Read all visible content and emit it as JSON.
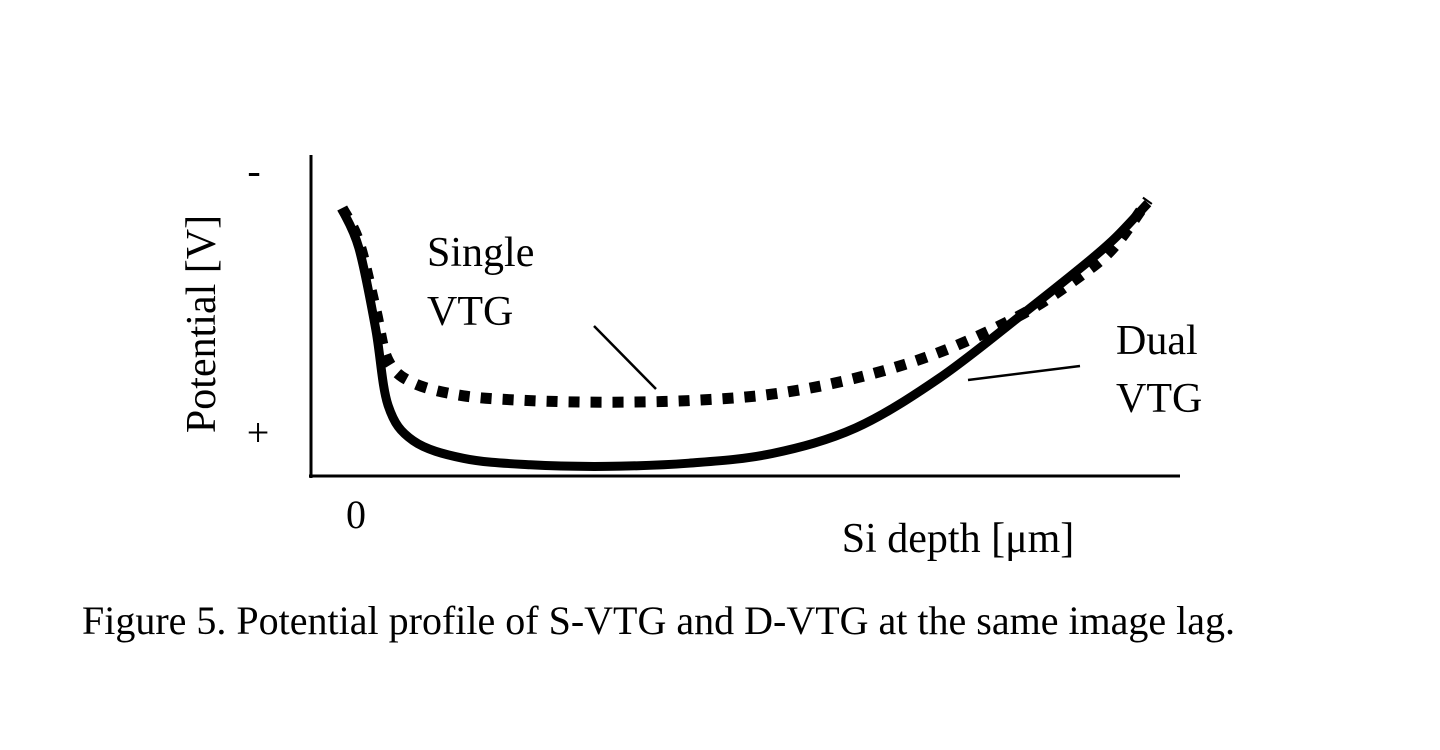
{
  "chart_data": {
    "type": "line",
    "xlabel": "Si depth [μm]",
    "ylabel": "Potential [V]",
    "x_tick_labels": [
      "0"
    ],
    "y_tick_labels": {
      "top": "-",
      "bottom": "+"
    },
    "xlim": [
      0,
      10
    ],
    "ylim": [
      0,
      10
    ],
    "grid": false,
    "legend": "none",
    "annotations": [
      {
        "lines": [
          "Single",
          "VTG"
        ],
        "series": "Single VTG"
      },
      {
        "lines": [
          "Dual",
          "VTG"
        ],
        "series": "Dual VTG"
      }
    ],
    "series": [
      {
        "name": "Single VTG",
        "style": "dashed",
        "color": "#000000",
        "x": [
          0.35,
          0.55,
          0.75,
          0.9,
          1.2,
          1.8,
          2.6,
          3.5,
          4.5,
          5.5,
          6.5,
          7.5,
          8.5,
          9.2,
          9.6,
          10.0
        ],
        "y": [
          8.35,
          7.3,
          5.2,
          3.6,
          2.9,
          2.5,
          2.35,
          2.3,
          2.35,
          2.55,
          3.05,
          3.85,
          5.05,
          6.25,
          7.15,
          8.6
        ]
      },
      {
        "name": "Dual VTG",
        "style": "solid",
        "color": "#000000",
        "x": [
          0.35,
          0.55,
          0.75,
          0.9,
          1.2,
          1.8,
          2.6,
          3.5,
          4.5,
          5.5,
          6.5,
          7.5,
          8.5,
          9.2,
          9.6,
          10.0
        ],
        "y": [
          8.3,
          7.1,
          4.6,
          2.2,
          1.1,
          0.55,
          0.35,
          0.3,
          0.4,
          0.7,
          1.5,
          3.05,
          5.05,
          6.5,
          7.4,
          8.5
        ]
      }
    ]
  },
  "caption": {
    "text": "Figure 5. Potential profile of S-VTG and D-VTG at the same image lag."
  }
}
